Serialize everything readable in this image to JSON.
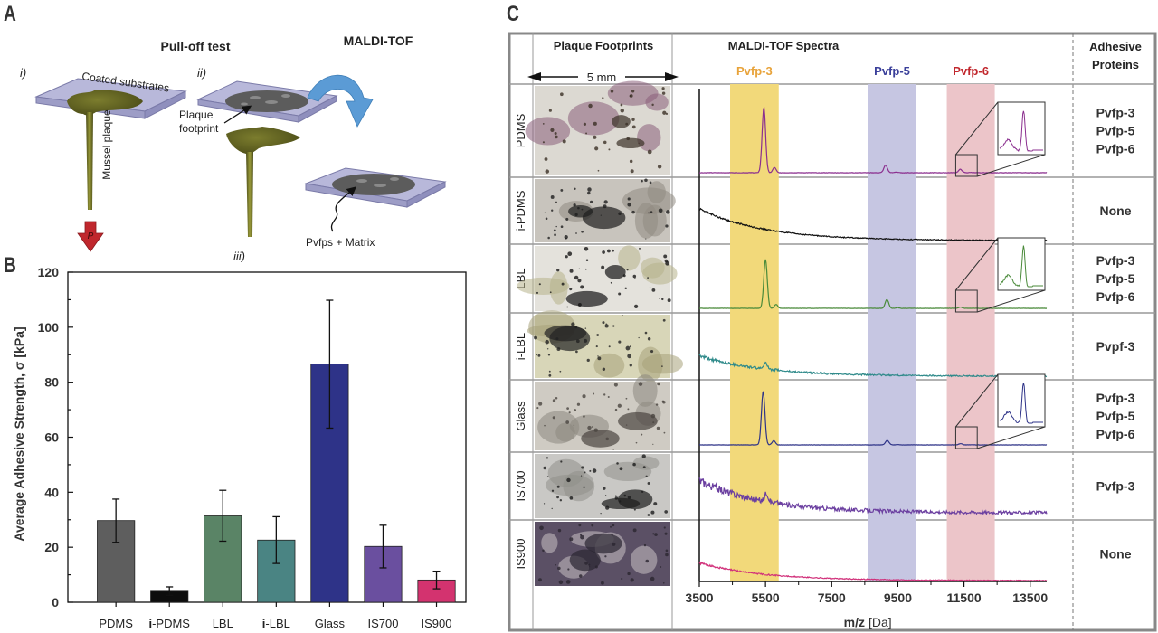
{
  "panels": {
    "A": "A",
    "B": "B",
    "C": "C"
  },
  "panelA": {
    "title_pulloff": "Pull-off test",
    "title_maldi": "MALDI-TOF",
    "step_i": "i)",
    "step_ii": "ii)",
    "step_iii": "iii)",
    "label_coated": "Coated substrates",
    "label_mussel": "Mussel plaque",
    "label_footprint_1": "Plaque",
    "label_footprint_2": "footprint",
    "label_matrix": "Pvfps + Matrix",
    "label_force": "P",
    "colors": {
      "substrate": "#a9a9cf",
      "plaque": "#5b5c1f",
      "arrow_flip": "#5b9bd5",
      "force_arrow": "#c0272d"
    }
  },
  "chart_data": [
    {
      "type": "bar",
      "panel": "B",
      "title": "",
      "xlabel": "",
      "ylabel": "Average Adhesive Strength, σ [kPa]",
      "categories": [
        "PDMS",
        "i-PDMS",
        "LBL",
        "i-LBL",
        "Glass",
        "IS700",
        "IS900"
      ],
      "category_prefix_bold": [
        "",
        "i",
        "",
        "i",
        "",
        "",
        ""
      ],
      "category_rest": [
        "PDMS",
        "-PDMS",
        "LBL",
        "-LBL",
        "Glass",
        "IS700",
        "IS900"
      ],
      "values": [
        29.7,
        4.0,
        31.4,
        22.6,
        86.6,
        20.3,
        8.1
      ],
      "error_high": [
        37.5,
        5.6,
        40.7,
        31.1,
        109.8,
        28.0,
        11.3
      ],
      "error_low": [
        21.8,
        2.5,
        22.2,
        14.1,
        63.3,
        12.5,
        4.9
      ],
      "colors": [
        "#5e5e5e",
        "#0d0d0d",
        "#5a8466",
        "#4a8483",
        "#2e3388",
        "#6a4f9f",
        "#d3336f"
      ],
      "ylim": [
        0,
        120
      ],
      "yticks": [
        0,
        20,
        40,
        60,
        80,
        100,
        120
      ],
      "grid": false,
      "legend": "none"
    },
    {
      "type": "line",
      "panel": "C",
      "title": "MALDI-TOF Spectra",
      "xlabel": "m/z [Da]",
      "xlabel_main": "m/z",
      "xlabel_unit": "[Da]",
      "xlim": [
        3500,
        14000
      ],
      "xticks": [
        3500,
        5500,
        7500,
        9500,
        11500,
        13500
      ],
      "xticks_minor": [
        4500,
        6500,
        8500,
        10500,
        12500
      ],
      "bands": [
        {
          "name": "Pvfp-3",
          "from": 4430,
          "to": 5900,
          "color": "#f2d97a",
          "label_color": "#e8a33a"
        },
        {
          "name": "Pvfp-5",
          "from": 8600,
          "to": 10050,
          "color": "#c6c6e2",
          "label_color": "#3a3f9a"
        },
        {
          "name": "Pvfp-6",
          "from": 10980,
          "to": 12430,
          "color": "#ecc5c9",
          "label_color": "#c1272d"
        }
      ],
      "series": [
        {
          "name": "PDMS",
          "color": "#8b2f8f",
          "peak3_color": "#9c2030",
          "baseline": "flat",
          "peaks": [
            {
              "x": 5450,
              "h": 0.78
            },
            {
              "x": 9130,
              "h": 0.09
            },
            {
              "x": 11390,
              "h": 0.04
            }
          ],
          "inset": true,
          "noise": 0.004
        },
        {
          "name": "i-PDMS",
          "color": "#111111",
          "baseline": "decay",
          "start": 0.55,
          "peaks": [],
          "inset": false,
          "noise": 0.012
        },
        {
          "name": "LBL",
          "color": "#4a8a3a",
          "baseline": "flat",
          "peaks": [
            {
              "x": 5500,
              "h": 0.82
            },
            {
              "x": 9170,
              "h": 0.15
            },
            {
              "x": 11390,
              "h": 0.02
            }
          ],
          "inset": true,
          "noise": 0.004
        },
        {
          "name": "i-LBL",
          "color": "#2f8a8a",
          "baseline": "decay",
          "start": 0.35,
          "peaks": [
            {
              "x": 5500,
              "h": 0.12
            }
          ],
          "inset": false,
          "noise": 0.02
        },
        {
          "name": "Glass",
          "color": "#2e3388",
          "peak3_color": "#2b2b2b",
          "baseline": "flat",
          "peaks": [
            {
              "x": 5430,
              "h": 0.85
            },
            {
              "x": 9180,
              "h": 0.07
            },
            {
              "x": 11400,
              "h": 0.02
            }
          ],
          "inset": true,
          "noise": 0.004
        },
        {
          "name": "IS700",
          "color": "#6b3fa0",
          "baseline": "decay",
          "start": 0.55,
          "peaks": [
            {
              "x": 5530,
              "h": 0.15
            }
          ],
          "inset": false,
          "noise": 0.05
        },
        {
          "name": "IS900",
          "color": "#d1307a",
          "baseline": "decay",
          "start": 0.3,
          "peaks": [],
          "inset": false,
          "noise": 0.012
        }
      ]
    }
  ],
  "panelC": {
    "header_footprints": "Plaque Footprints",
    "scale_label": "5 mm",
    "header_spectra": "MALDI-TOF Spectra",
    "header_proteins_1": "Adhesive",
    "header_proteins_2": "Proteins",
    "rows": [
      {
        "label": "PDMS",
        "proteins": [
          "Pvfp-3",
          "Pvfp-5",
          "Pvfp-6"
        ],
        "photo_tone": [
          "#dcd9d2",
          "#3b3026",
          "#8a5f7a"
        ]
      },
      {
        "label": "i-PDMS",
        "proteins": [
          "None"
        ],
        "photo_tone": [
          "#c8c4bd",
          "#1e1e1e",
          "#8f8a82"
        ]
      },
      {
        "label": "LBL",
        "proteins": [
          "Pvfp-3",
          "Pvfp-5",
          "Pvfp-6"
        ],
        "photo_tone": [
          "#e4e2dc",
          "#161616",
          "#b7b38a"
        ]
      },
      {
        "label": "i-LBL",
        "proteins": [
          "Pvfp-3"
        ],
        "proteins_display": [
          "Pvpf-3"
        ],
        "photo_tone": [
          "#d8d6b8",
          "#222222",
          "#a7a27a"
        ]
      },
      {
        "label": "Glass",
        "proteins": [
          "Pvfp-3",
          "Pvfp-5",
          "Pvfp-6"
        ],
        "photo_tone": [
          "#cfcbc3",
          "#4a4540",
          "#8d8880"
        ]
      },
      {
        "label": "IS700",
        "proteins": [
          "Pvfp-3"
        ],
        "photo_tone": [
          "#c9c8c5",
          "#1c1c1c",
          "#908f8a"
        ]
      },
      {
        "label": "IS900",
        "proteins": [
          "None"
        ],
        "photo_tone": [
          "#5b5065",
          "#2a2530",
          "#c9c1c4"
        ]
      }
    ]
  }
}
